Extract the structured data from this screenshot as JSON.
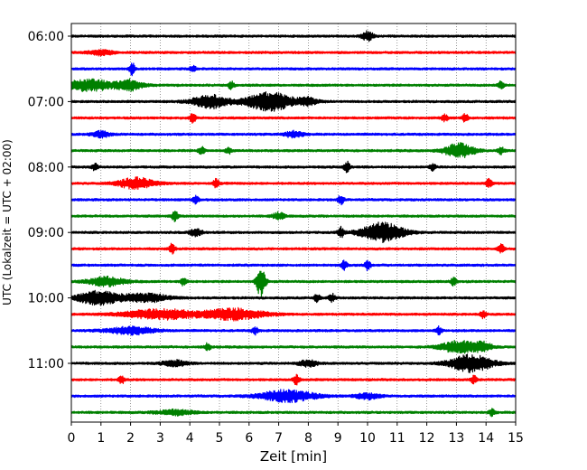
{
  "chart_data": {
    "type": "line",
    "title": "",
    "xlabel": "Zeit  [min]",
    "ylabel": "UTC (Lokalzeit = UTC + 02:00)",
    "xlim": [
      0,
      15
    ],
    "x_ticks": [
      0,
      1,
      2,
      3,
      4,
      5,
      6,
      7,
      8,
      9,
      10,
      11,
      12,
      13,
      14,
      15
    ],
    "y_tick_labels": [
      "06:00",
      "07:00",
      "08:00",
      "09:00",
      "10:00",
      "11:00"
    ],
    "y_tick_trace_index": [
      0,
      4,
      8,
      12,
      16,
      20
    ],
    "trace_interval_minutes": 15,
    "grid": "vertical dotted at each minute",
    "legend": "none",
    "color_cycle": [
      "#000000",
      "#ff0000",
      "#0000ff",
      "#008000"
    ],
    "series": [
      {
        "start": "06:00",
        "color": "#000000",
        "events": [
          {
            "x": 10.0,
            "amp": 0.45,
            "dur": 0.2
          }
        ]
      },
      {
        "start": "06:15",
        "color": "#ff0000",
        "events": [
          {
            "x": 1.0,
            "amp": 0.25,
            "dur": 0.4
          }
        ]
      },
      {
        "start": "06:30",
        "color": "#0000ff",
        "events": [
          {
            "x": 2.05,
            "amp": 0.6,
            "dur": 0.1
          },
          {
            "x": 4.1,
            "amp": 0.35,
            "dur": 0.1
          }
        ]
      },
      {
        "start": "06:45",
        "color": "#008000",
        "events": [
          {
            "x": 0.6,
            "amp": 0.55,
            "dur": 0.9
          },
          {
            "x": 2.0,
            "amp": 0.5,
            "dur": 0.4
          },
          {
            "x": 5.4,
            "amp": 0.4,
            "dur": 0.1
          },
          {
            "x": 14.5,
            "amp": 0.45,
            "dur": 0.1
          }
        ]
      },
      {
        "start": "07:00",
        "color": "#000000",
        "events": [
          {
            "x": 4.7,
            "amp": 0.65,
            "dur": 0.6
          },
          {
            "x": 6.7,
            "amp": 0.9,
            "dur": 0.8
          },
          {
            "x": 8.0,
            "amp": 0.35,
            "dur": 0.3
          }
        ]
      },
      {
        "start": "07:15",
        "color": "#ff0000",
        "events": [
          {
            "x": 4.1,
            "amp": 0.45,
            "dur": 0.1
          },
          {
            "x": 12.6,
            "amp": 0.35,
            "dur": 0.1
          },
          {
            "x": 13.3,
            "amp": 0.4,
            "dur": 0.1
          }
        ]
      },
      {
        "start": "07:30",
        "color": "#0000ff",
        "events": [
          {
            "x": 1.0,
            "amp": 0.3,
            "dur": 0.3
          },
          {
            "x": 7.5,
            "amp": 0.3,
            "dur": 0.3
          }
        ]
      },
      {
        "start": "07:45",
        "color": "#008000",
        "events": [
          {
            "x": 4.4,
            "amp": 0.4,
            "dur": 0.1
          },
          {
            "x": 5.3,
            "amp": 0.35,
            "dur": 0.1
          },
          {
            "x": 13.1,
            "amp": 0.7,
            "dur": 0.5
          },
          {
            "x": 14.5,
            "amp": 0.4,
            "dur": 0.1
          }
        ]
      },
      {
        "start": "08:00",
        "color": "#000000",
        "events": [
          {
            "x": 0.8,
            "amp": 0.35,
            "dur": 0.1
          },
          {
            "x": 9.3,
            "amp": 0.55,
            "dur": 0.1
          },
          {
            "x": 12.2,
            "amp": 0.3,
            "dur": 0.1
          }
        ]
      },
      {
        "start": "08:15",
        "color": "#ff0000",
        "events": [
          {
            "x": 2.2,
            "amp": 0.55,
            "dur": 0.6
          },
          {
            "x": 4.9,
            "amp": 0.45,
            "dur": 0.1
          },
          {
            "x": 14.1,
            "amp": 0.4,
            "dur": 0.1
          }
        ]
      },
      {
        "start": "08:30",
        "color": "#0000ff",
        "events": [
          {
            "x": 4.2,
            "amp": 0.35,
            "dur": 0.1
          },
          {
            "x": 9.1,
            "amp": 0.45,
            "dur": 0.1
          }
        ]
      },
      {
        "start": "08:45",
        "color": "#008000",
        "events": [
          {
            "x": 3.5,
            "amp": 0.55,
            "dur": 0.1
          },
          {
            "x": 7.0,
            "amp": 0.35,
            "dur": 0.2
          }
        ]
      },
      {
        "start": "09:00",
        "color": "#000000",
        "events": [
          {
            "x": 4.2,
            "amp": 0.4,
            "dur": 0.2
          },
          {
            "x": 9.1,
            "amp": 0.5,
            "dur": 0.1
          },
          {
            "x": 10.5,
            "amp": 0.95,
            "dur": 0.7
          }
        ]
      },
      {
        "start": "09:15",
        "color": "#ff0000",
        "events": [
          {
            "x": 3.4,
            "amp": 0.5,
            "dur": 0.1
          },
          {
            "x": 14.5,
            "amp": 0.5,
            "dur": 0.1
          }
        ]
      },
      {
        "start": "09:30",
        "color": "#0000ff",
        "events": [
          {
            "x": 9.2,
            "amp": 0.45,
            "dur": 0.1
          },
          {
            "x": 10.0,
            "amp": 0.5,
            "dur": 0.1
          }
        ]
      },
      {
        "start": "09:45",
        "color": "#008000",
        "events": [
          {
            "x": 1.2,
            "amp": 0.45,
            "dur": 0.6
          },
          {
            "x": 3.8,
            "amp": 0.45,
            "dur": 0.1
          },
          {
            "x": 6.4,
            "amp": 1.5,
            "dur": 0.15
          },
          {
            "x": 12.9,
            "amp": 0.35,
            "dur": 0.1
          }
        ]
      },
      {
        "start": "10:00",
        "color": "#000000",
        "events": [
          {
            "x": 0.9,
            "amp": 0.65,
            "dur": 0.7
          },
          {
            "x": 2.5,
            "amp": 0.4,
            "dur": 0.8
          },
          {
            "x": 8.3,
            "amp": 0.4,
            "dur": 0.1
          },
          {
            "x": 8.8,
            "amp": 0.4,
            "dur": 0.1
          }
        ]
      },
      {
        "start": "10:15",
        "color": "#ff0000",
        "events": [
          {
            "x": 3.0,
            "amp": 0.5,
            "dur": 1.2
          },
          {
            "x": 5.5,
            "amp": 0.55,
            "dur": 1.0
          },
          {
            "x": 13.9,
            "amp": 0.35,
            "dur": 0.1
          }
        ]
      },
      {
        "start": "10:30",
        "color": "#0000ff",
        "events": [
          {
            "x": 2.0,
            "amp": 0.35,
            "dur": 0.8
          },
          {
            "x": 6.2,
            "amp": 0.35,
            "dur": 0.1
          },
          {
            "x": 12.4,
            "amp": 0.35,
            "dur": 0.1
          }
        ]
      },
      {
        "start": "10:45",
        "color": "#008000",
        "events": [
          {
            "x": 4.6,
            "amp": 0.35,
            "dur": 0.1
          },
          {
            "x": 13.1,
            "amp": 0.6,
            "dur": 0.6
          },
          {
            "x": 13.9,
            "amp": 0.4,
            "dur": 0.3
          }
        ]
      },
      {
        "start": "11:00",
        "color": "#000000",
        "events": [
          {
            "x": 3.5,
            "amp": 0.3,
            "dur": 0.4
          },
          {
            "x": 8.0,
            "amp": 0.35,
            "dur": 0.3
          },
          {
            "x": 13.5,
            "amp": 0.85,
            "dur": 0.7
          }
        ]
      },
      {
        "start": "11:15",
        "color": "#ff0000",
        "events": [
          {
            "x": 1.7,
            "amp": 0.4,
            "dur": 0.1
          },
          {
            "x": 7.6,
            "amp": 0.5,
            "dur": 0.1
          },
          {
            "x": 13.6,
            "amp": 0.4,
            "dur": 0.1
          }
        ]
      },
      {
        "start": "11:30",
        "color": "#0000ff",
        "events": [
          {
            "x": 7.3,
            "amp": 0.6,
            "dur": 0.9
          },
          {
            "x": 10.0,
            "amp": 0.3,
            "dur": 0.4
          }
        ]
      },
      {
        "start": "11:45",
        "color": "#008000",
        "events": [
          {
            "x": 3.5,
            "amp": 0.25,
            "dur": 0.6
          },
          {
            "x": 14.2,
            "amp": 0.3,
            "dur": 0.1
          }
        ]
      }
    ]
  }
}
